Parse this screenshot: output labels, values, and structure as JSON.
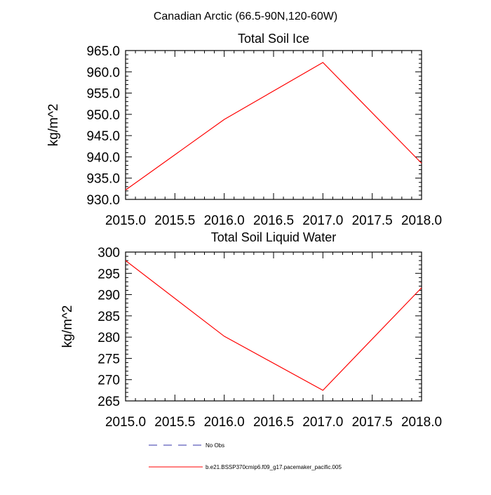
{
  "figure": {
    "suptitle": "Canadian Arctic (66.5-90N,120-60W)"
  },
  "colors": {
    "series": "#ff0000",
    "obs": "#3333aa",
    "axis": "#000000"
  },
  "legend": {
    "placement": "bottom-center",
    "items": [
      {
        "label": "No Obs",
        "style": "dashed",
        "color": "#3333aa"
      },
      {
        "label": "b.e21.BSSP370cmip6.f09_g17.pacemaker_pacific.005",
        "style": "solid",
        "color": "#ff0000"
      }
    ]
  },
  "chart_data": [
    {
      "type": "line",
      "title": "Total Soil Ice",
      "xlabel": "",
      "ylabel": "kg/m^2",
      "xlim": [
        2015.0,
        2018.0
      ],
      "ylim": [
        930.0,
        965.0
      ],
      "xticks": [
        2015.0,
        2015.5,
        2016.0,
        2016.5,
        2017.0,
        2017.5,
        2018.0
      ],
      "xtick_labels": [
        "2015.0",
        "2015.5",
        "2016.0",
        "2016.5",
        "2017.0",
        "2017.5",
        "2018.0"
      ],
      "yticks": [
        930,
        935,
        940,
        945,
        950,
        955,
        960,
        965
      ],
      "ytick_labels": [
        "930.0",
        "935.0",
        "940.0",
        "945.0",
        "950.0",
        "955.0",
        "960.0",
        "965.0"
      ],
      "grid": false,
      "series": [
        {
          "color": "#ff0000",
          "x": [
            2015.0,
            2016.0,
            2017.0,
            2018.0
          ],
          "y": [
            932.2,
            948.8,
            962.2,
            938.5
          ]
        }
      ]
    },
    {
      "type": "line",
      "title": "Total Soil Liquid Water",
      "xlabel": "",
      "ylabel": "kg/m^2",
      "xlim": [
        2015.0,
        2018.0
      ],
      "ylim": [
        265,
        300
      ],
      "xticks": [
        2015.0,
        2015.5,
        2016.0,
        2016.5,
        2017.0,
        2017.5,
        2018.0
      ],
      "xtick_labels": [
        "2015.0",
        "2015.5",
        "2016.0",
        "2016.5",
        "2017.0",
        "2017.5",
        "2018.0"
      ],
      "yticks": [
        265,
        270,
        275,
        280,
        285,
        290,
        295,
        300
      ],
      "ytick_labels": [
        "265",
        "270",
        "275",
        "280",
        "285",
        "290",
        "295",
        "300"
      ],
      "grid": false,
      "series": [
        {
          "color": "#ff0000",
          "x": [
            2015.0,
            2016.0,
            2017.0,
            2018.0
          ],
          "y": [
            298.0,
            280.2,
            267.5,
            291.6
          ]
        }
      ]
    }
  ]
}
